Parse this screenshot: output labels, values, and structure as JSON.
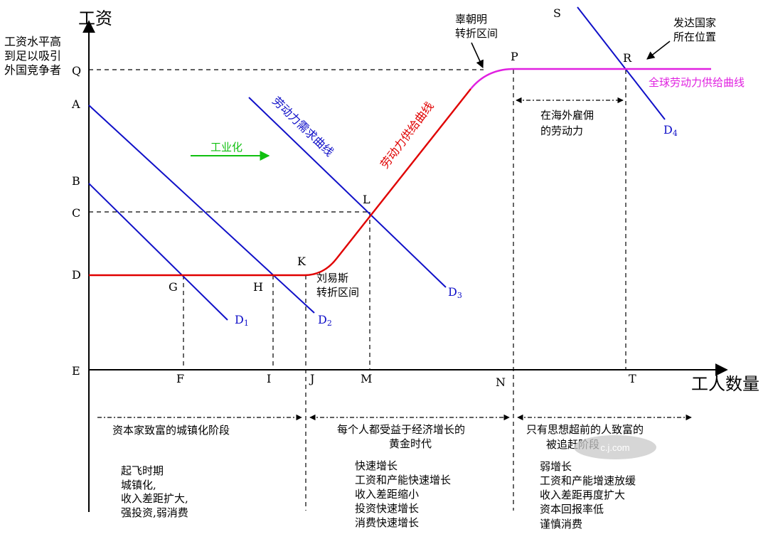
{
  "axes": {
    "y_title": "工资",
    "x_title": "工人数量",
    "origin": "E",
    "y_labels": [
      "Q",
      "A",
      "B",
      "C",
      "D"
    ],
    "x_labels": [
      "F",
      "I",
      "J",
      "M",
      "N",
      "T"
    ]
  },
  "note_y": [
    "工资水平高",
    "到足以吸引",
    "外国竞争者"
  ],
  "points": [
    "G",
    "H",
    "K",
    "L",
    "P",
    "R",
    "S"
  ],
  "curves": {
    "d1": {
      "main": "D",
      "sub": "1"
    },
    "d2": {
      "main": "D",
      "sub": "2"
    },
    "d3": {
      "main": "D",
      "sub": "3"
    },
    "d4": {
      "main": "D",
      "sub": "4"
    },
    "demand_label": "劳动力需求曲线",
    "supply_label": "劳动力供给曲线",
    "global_supply_label": "全球劳动力供给曲线"
  },
  "annotations": {
    "industrialization": "工业化",
    "lewis": [
      "刘易斯",
      "转折区间"
    ],
    "gao": [
      "辜朝明",
      "转折区间"
    ],
    "developed": [
      "发达国家",
      "所在位置"
    ],
    "overseas": [
      "在海外雇佣",
      "的劳动力"
    ]
  },
  "phases": [
    {
      "title": [
        "资本家致富的城镇化阶段"
      ],
      "items": [
        "起飞时期",
        "城镇化,",
        "收入差距扩大,",
        "强投资,弱消费"
      ]
    },
    {
      "title": [
        "每个人都受益于经济增长的",
        "黄金时代"
      ],
      "items": [
        "快速增长",
        "工资和产能快速增长",
        "收入差距缩小",
        "投资快速增长",
        "消费快速增长"
      ]
    },
    {
      "title": [
        "只有思想超前的人致富的",
        "被追赶阶段"
      ],
      "items": [
        "弱增长",
        "工资和产能增速放缓",
        "收入差距再度扩大",
        "资本回报率低",
        "谨慎消费"
      ]
    }
  ],
  "watermark": "c.j.com",
  "colors": {
    "axis": "#000000",
    "demand": "#1010c8",
    "supply": "#e00000",
    "global_supply": "#e020e0",
    "industrialization": "#10c010",
    "watermark": "#d0d0d0"
  }
}
